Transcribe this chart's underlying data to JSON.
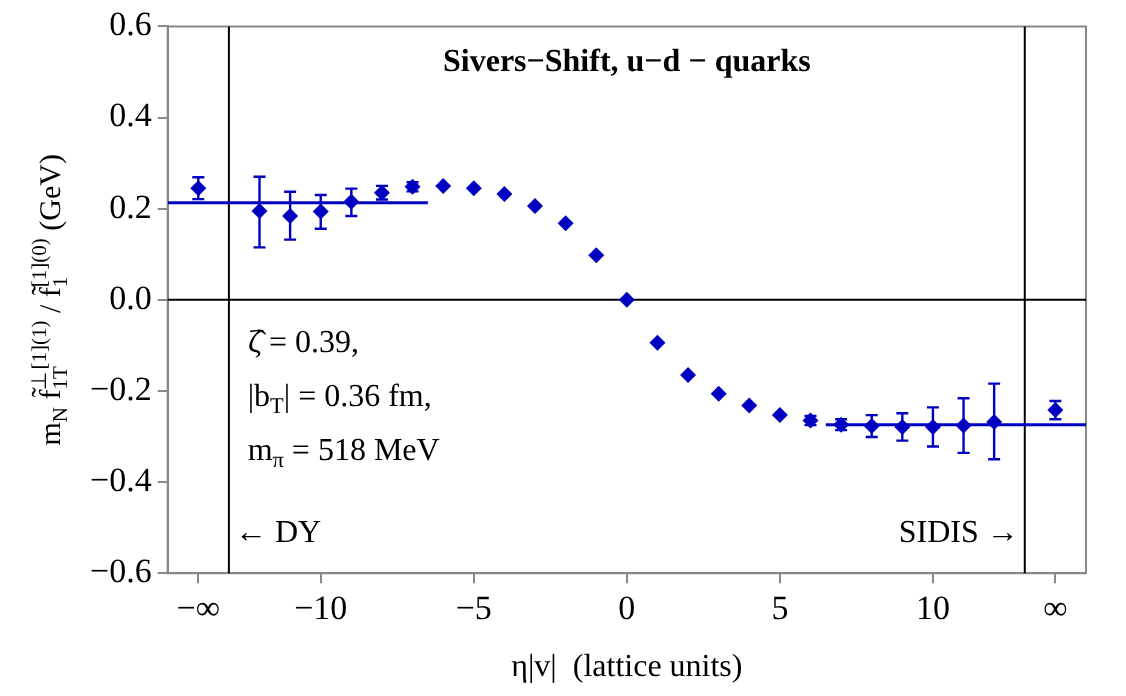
{
  "chart_data": {
    "type": "scatter",
    "title": "Sivers−Shift, u−d − quarks",
    "xlabel": "η|v|  (lattice units)",
    "ylabel": "m$_{N}$ f̃$^{⊥[1](1)}$$_{1T}$ / f̃$^{[1](0)}$$_{1}$ (GeV)",
    "xlim": [
      -15,
      15
    ],
    "xticks": [
      {
        "value": -14,
        "label": "−∞"
      },
      {
        "value": -10,
        "label": "−10"
      },
      {
        "value": -5,
        "label": "−5"
      },
      0,
      5,
      10,
      {
        "value": 14,
        "label": "∞"
      }
    ],
    "ylim": [
      -0.6,
      0.6
    ],
    "yticks": [
      {
        "value": -0.6,
        "label": "−0.6"
      },
      {
        "value": -0.4,
        "label": "−0.4"
      },
      {
        "value": -0.2,
        "label": "−0.2"
      },
      {
        "value": 0,
        "label": "0.0"
      },
      0.2,
      0.4,
      0.6
    ],
    "grid": false,
    "legend": false,
    "marker": "diamond",
    "series": [
      {
        "color": "#0000c0",
        "x": [
          -12,
          -11,
          -10,
          -9,
          -8,
          -7,
          -6,
          -5,
          -4,
          -3,
          -2,
          -1,
          0,
          1,
          2,
          3,
          4,
          5,
          6,
          7,
          8,
          9,
          10,
          11,
          12
        ],
        "values": [
          0.195,
          0.184,
          0.194,
          0.215,
          0.235,
          0.248,
          0.25,
          0.245,
          0.232,
          0.206,
          0.168,
          0.098,
          0,
          -0.094,
          -0.165,
          -0.206,
          -0.232,
          -0.253,
          -0.265,
          -0.274,
          -0.277,
          -0.279,
          -0.279,
          -0.276,
          -0.268
        ],
        "errors": [
          [
            0.115,
            0.27
          ],
          [
            0.132,
            0.237
          ],
          [
            0.156,
            0.23
          ],
          [
            0.184,
            0.244
          ],
          0.015,
          0.01,
          null,
          null,
          null,
          null,
          null,
          null,
          null,
          null,
          null,
          null,
          null,
          null,
          0.01,
          0.012,
          0.024,
          0.03,
          0.043,
          0.06,
          [
            -0.35,
            -0.184
          ]
        ]
      },
      {
        "color": "#0000c0",
        "x": [
          -14,
          14
        ],
        "values": [
          0.245,
          -0.242
        ],
        "errors": [
          0.024,
          0.02
        ]
      },
      {
        "type": "line",
        "color": "#0000c0",
        "marker": "none",
        "x": [
          -15,
          -6.5
        ],
        "values": [
          0.213,
          0.213
        ]
      },
      {
        "type": "line",
        "color": "#0000c0",
        "marker": "none",
        "x": [
          6.5,
          15
        ],
        "values": [
          -0.274,
          -0.274
        ]
      }
    ],
    "ref_lines": [
      {
        "axis": "y",
        "value": 0,
        "color": "#000000"
      },
      {
        "axis": "x",
        "value": -13,
        "label": "← DY",
        "color": "#000000"
      },
      {
        "axis": "x",
        "value": 13,
        "label": "SIDIS →",
        "color": "#000000"
      }
    ],
    "annotations": [
      "ζ̂ = 0.39,",
      "|b$_{T}$| = 0.36 fm,",
      "m$_{π}$ = 518 MeV"
    ]
  }
}
